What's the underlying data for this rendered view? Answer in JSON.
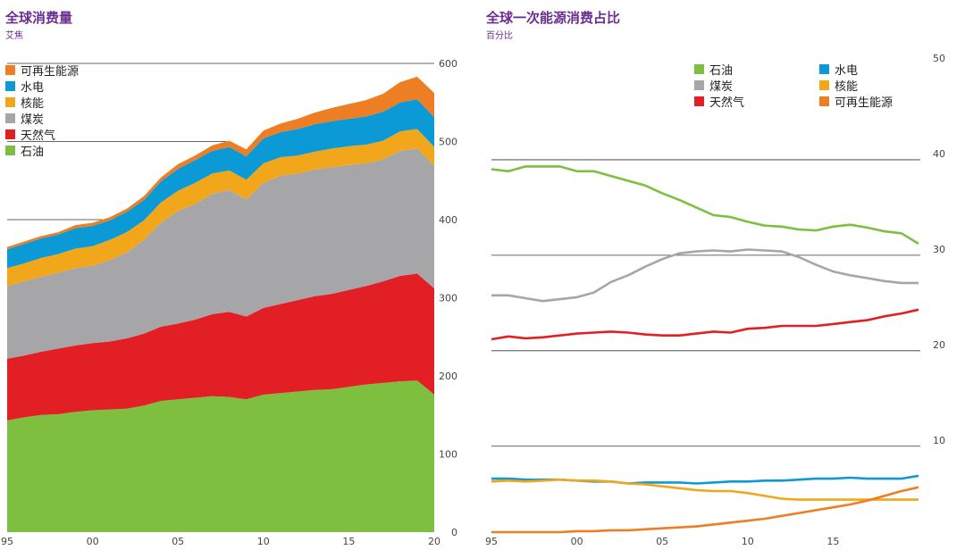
{
  "chart_data": [
    {
      "type": "area",
      "stacked": true,
      "title": "全球消费量",
      "subtitle": "艾焦",
      "x_tick_labels": [
        "95",
        "00",
        "05",
        "10",
        "15",
        "20"
      ],
      "y_tick_labels": [
        "0",
        "100",
        "200",
        "300",
        "400",
        "500",
        "600"
      ],
      "ylim": [
        0,
        600
      ],
      "xlim": [
        1995,
        2020
      ],
      "legend_position": "top-left",
      "x": [
        1995,
        1996,
        1997,
        1998,
        1999,
        2000,
        2001,
        2002,
        2003,
        2004,
        2005,
        2006,
        2007,
        2008,
        2009,
        2010,
        2011,
        2012,
        2013,
        2014,
        2015,
        2016,
        2017,
        2018,
        2019,
        2020
      ],
      "series": [
        {
          "name": "石油",
          "color": "#7fbf3f",
          "values": [
            143,
            147,
            150,
            151,
            154,
            156,
            157,
            158,
            162,
            168,
            170,
            172,
            174,
            173,
            170,
            176,
            178,
            180,
            182,
            183,
            186,
            189,
            191,
            193,
            194,
            176
          ]
        },
        {
          "name": "天然气",
          "color": "#e31f26",
          "values": [
            79,
            79,
            81,
            84,
            85,
            86,
            87,
            90,
            92,
            95,
            97,
            100,
            105,
            109,
            106,
            111,
            114,
            117,
            120,
            122,
            124,
            126,
            130,
            135,
            137,
            136
          ]
        },
        {
          "name": "煤炭",
          "color": "#a6a6a8",
          "values": [
            93,
            95,
            96,
            97,
            99,
            99,
            104,
            110,
            120,
            133,
            144,
            148,
            154,
            156,
            150,
            160,
            164,
            162,
            162,
            162,
            160,
            157,
            156,
            160,
            160,
            157
          ]
        },
        {
          "name": "核能",
          "color": "#f2a71b",
          "values": [
            23,
            23,
            24,
            24,
            25,
            25,
            26,
            26,
            25,
            26,
            26,
            27,
            26,
            25,
            25,
            25,
            24,
            23,
            23,
            24,
            24,
            24,
            24,
            25,
            25,
            24
          ]
        },
        {
          "name": "水电",
          "color": "#0b9ad6",
          "values": [
            24,
            25,
            25,
            25,
            26,
            26,
            25,
            26,
            26,
            27,
            28,
            29,
            29,
            30,
            30,
            32,
            32,
            34,
            35,
            35,
            35,
            36,
            37,
            37,
            38,
            38
          ]
        },
        {
          "name": "可再生能源",
          "color": "#ed7e23",
          "values": [
            3,
            3,
            3,
            3,
            4,
            4,
            4,
            4,
            5,
            5,
            6,
            6,
            7,
            8,
            9,
            10,
            11,
            13,
            15,
            17,
            19,
            21,
            23,
            26,
            29,
            31
          ]
        }
      ]
    },
    {
      "type": "line",
      "title": "全球一次能源消费占比",
      "subtitle": "百分比",
      "x_tick_labels": [
        "95",
        "00",
        "05",
        "10",
        "15"
      ],
      "y_tick_labels": [
        "10",
        "20",
        "30",
        "40",
        "50"
      ],
      "ylim": [
        1,
        50
      ],
      "xlim": [
        1995,
        2020
      ],
      "legend_position": "top-right",
      "x": [
        1995,
        1996,
        1997,
        1998,
        1999,
        2000,
        2001,
        2002,
        2003,
        2004,
        2005,
        2006,
        2007,
        2008,
        2009,
        2010,
        2011,
        2012,
        2013,
        2014,
        2015,
        2016,
        2017,
        2018,
        2019,
        2020
      ],
      "series": [
        {
          "name": "石油",
          "color": "#7fbf3f",
          "values": [
            39.0,
            38.8,
            39.3,
            39.3,
            39.3,
            38.8,
            38.8,
            38.3,
            37.8,
            37.3,
            36.5,
            35.8,
            35.0,
            34.2,
            34.0,
            33.5,
            33.1,
            33.0,
            32.7,
            32.6,
            33.0,
            33.2,
            32.9,
            32.5,
            32.3,
            31.2
          ]
        },
        {
          "name": "煤炭",
          "color": "#a6a6a8",
          "values": [
            25.8,
            25.8,
            25.5,
            25.2,
            25.4,
            25.6,
            26.1,
            27.2,
            27.9,
            28.8,
            29.6,
            30.2,
            30.4,
            30.5,
            30.4,
            30.6,
            30.5,
            30.4,
            29.8,
            29.0,
            28.3,
            27.9,
            27.6,
            27.3,
            27.1,
            27.1
          ]
        },
        {
          "name": "天然气",
          "color": "#e31f26",
          "values": [
            21.2,
            21.5,
            21.3,
            21.4,
            21.6,
            21.8,
            21.9,
            22.0,
            21.9,
            21.7,
            21.6,
            21.6,
            21.8,
            22.0,
            21.9,
            22.3,
            22.4,
            22.6,
            22.6,
            22.6,
            22.8,
            23.0,
            23.2,
            23.6,
            23.9,
            24.3
          ]
        },
        {
          "name": "水电",
          "color": "#0b9ad6",
          "values": [
            6.6,
            6.6,
            6.5,
            6.5,
            6.5,
            6.4,
            6.3,
            6.3,
            6.1,
            6.2,
            6.2,
            6.2,
            6.1,
            6.2,
            6.3,
            6.3,
            6.4,
            6.4,
            6.5,
            6.6,
            6.6,
            6.7,
            6.6,
            6.6,
            6.6,
            6.9
          ]
        },
        {
          "name": "核能",
          "color": "#f2a71b",
          "values": [
            6.3,
            6.4,
            6.3,
            6.4,
            6.5,
            6.4,
            6.4,
            6.3,
            6.1,
            6.0,
            5.8,
            5.6,
            5.4,
            5.3,
            5.3,
            5.1,
            4.8,
            4.5,
            4.4,
            4.4,
            4.4,
            4.4,
            4.4,
            4.4,
            4.4,
            4.4
          ]
        },
        {
          "name": "可再生能源",
          "color": "#ed7e23",
          "values": [
            1.0,
            1.0,
            1.0,
            1.0,
            1.0,
            1.1,
            1.1,
            1.2,
            1.2,
            1.3,
            1.4,
            1.5,
            1.6,
            1.8,
            2.0,
            2.2,
            2.4,
            2.7,
            3.0,
            3.3,
            3.6,
            3.9,
            4.3,
            4.8,
            5.3,
            5.7
          ]
        }
      ]
    }
  ]
}
